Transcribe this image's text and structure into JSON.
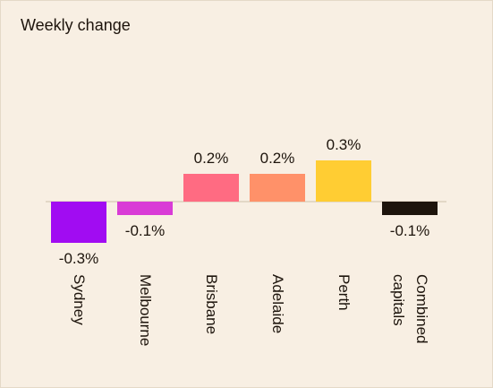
{
  "chart_data": {
    "type": "bar",
    "title": "Weekly change",
    "categories": [
      "Sydney",
      "Melbourne",
      "Brisbane",
      "Adelaide",
      "Perth",
      "Combined capitals"
    ],
    "values": [
      -0.3,
      -0.1,
      0.2,
      0.2,
      0.3,
      -0.1
    ],
    "value_labels": [
      "-0.3%",
      "-0.1%",
      "0.2%",
      "0.2%",
      "0.3%",
      "-0.1%"
    ],
    "colors": [
      "#a10cf2",
      "#d93bd6",
      "#ff6b82",
      "#ff9169",
      "#ffcd33",
      "#1d140c"
    ]
  }
}
